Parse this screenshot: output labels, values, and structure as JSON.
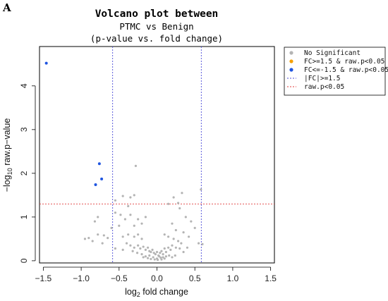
{
  "panel_letter": "A",
  "chart_data": {
    "type": "scatter",
    "title": "Volcano plot between",
    "subtitle": "PTMC vs Benign",
    "subtitle2": "(p-value vs. fold change)",
    "xlabel": {
      "prefix": "log",
      "sub": "2",
      "rest": " fold change"
    },
    "ylabel": {
      "prefix": "−log",
      "sub": "10",
      "rest": " raw.p−value"
    },
    "xlim": [
      -1.55,
      1.55
    ],
    "ylim": [
      -0.05,
      4.9
    ],
    "xticks": [
      -1.5,
      -1.0,
      -0.5,
      0.0,
      0.5,
      1.0,
      1.5
    ],
    "xtick_labels": [
      "−1.5",
      "−1.0",
      "−0.5",
      "0.0",
      "0.5",
      "1.0",
      "1.5"
    ],
    "yticks": [
      0,
      1,
      2,
      3,
      4
    ],
    "ytick_labels": [
      "0",
      "1",
      "2",
      "3",
      "4"
    ],
    "thresholds": {
      "fc_log2": [
        -0.585,
        0.585
      ],
      "p_log10": 1.3
    },
    "colors": {
      "ns": "#b4b4b4",
      "up": "#f5a000",
      "down": "#1f55e0",
      "fc_line": "#4a4ad8",
      "p_line": "#e03a3a"
    },
    "legend": [
      {
        "label": "No Significant",
        "kind": "dot",
        "color": "#b4b4b4"
      },
      {
        "label": "FC>=1.5 & raw.p<0.05",
        "kind": "dot",
        "color": "#f5a000"
      },
      {
        "label": "FC<=-1.5 & raw.p<0.05",
        "kind": "dot",
        "color": "#1f55e0"
      },
      {
        "label": "|FC|>=1.5",
        "kind": "line",
        "color": "#4a4ad8"
      },
      {
        "label": "raw.p<0.05",
        "kind": "line",
        "color": "#e03a3a"
      }
    ],
    "legend_position": "top-right outside",
    "series": [
      {
        "name": "No Significant",
        "points": [
          [
            -0.28,
            2.17
          ],
          [
            0.33,
            1.55
          ],
          [
            0.58,
            1.63
          ],
          [
            -0.45,
            1.48
          ],
          [
            -0.35,
            1.45
          ],
          [
            -0.3,
            1.5
          ],
          [
            0.22,
            1.45
          ],
          [
            -0.55,
            1.38
          ],
          [
            0.28,
            1.32
          ],
          [
            0.15,
            1.3
          ],
          [
            -0.38,
            1.25
          ],
          [
            -0.78,
            1.0
          ],
          [
            -0.82,
            0.9
          ],
          [
            -0.55,
            1.1
          ],
          [
            -0.48,
            1.05
          ],
          [
            -0.42,
            0.95
          ],
          [
            -0.35,
            1.05
          ],
          [
            -0.25,
            0.95
          ],
          [
            -0.15,
            1.0
          ],
          [
            0.3,
            1.2
          ],
          [
            0.38,
            1.0
          ],
          [
            0.45,
            0.9
          ],
          [
            0.5,
            0.75
          ],
          [
            -0.6,
            0.75
          ],
          [
            -0.5,
            0.8
          ],
          [
            -0.3,
            0.8
          ],
          [
            -0.2,
            0.85
          ],
          [
            0.2,
            0.85
          ],
          [
            0.25,
            0.7
          ],
          [
            0.35,
            0.65
          ],
          [
            -0.95,
            0.5
          ],
          [
            -0.9,
            0.52
          ],
          [
            -0.85,
            0.45
          ],
          [
            -0.78,
            0.6
          ],
          [
            -0.7,
            0.58
          ],
          [
            -0.65,
            0.52
          ],
          [
            -0.72,
            0.4
          ],
          [
            0.55,
            0.4
          ],
          [
            0.6,
            0.38
          ],
          [
            0.42,
            0.55
          ],
          [
            -0.45,
            0.55
          ],
          [
            -0.38,
            0.6
          ],
          [
            -0.3,
            0.55
          ],
          [
            -0.25,
            0.6
          ],
          [
            -0.2,
            0.5
          ],
          [
            0.1,
            0.6
          ],
          [
            0.15,
            0.55
          ],
          [
            0.22,
            0.5
          ],
          [
            0.28,
            0.45
          ],
          [
            0.32,
            0.4
          ],
          [
            -0.4,
            0.4
          ],
          [
            -0.35,
            0.35
          ],
          [
            -0.3,
            0.3
          ],
          [
            -0.25,
            0.35
          ],
          [
            -0.22,
            0.28
          ],
          [
            -0.18,
            0.32
          ],
          [
            -0.15,
            0.25
          ],
          [
            -0.12,
            0.3
          ],
          [
            -0.1,
            0.22
          ],
          [
            -0.08,
            0.2
          ],
          [
            -0.06,
            0.25
          ],
          [
            -0.04,
            0.18
          ],
          [
            -0.02,
            0.15
          ],
          [
            0.0,
            0.2
          ],
          [
            0.02,
            0.12
          ],
          [
            0.04,
            0.18
          ],
          [
            0.06,
            0.22
          ],
          [
            0.08,
            0.15
          ],
          [
            0.1,
            0.28
          ],
          [
            0.12,
            0.2
          ],
          [
            0.15,
            0.3
          ],
          [
            0.18,
            0.25
          ],
          [
            0.2,
            0.35
          ],
          [
            0.25,
            0.3
          ],
          [
            0.3,
            0.28
          ],
          [
            -0.2,
            0.15
          ],
          [
            -0.15,
            0.1
          ],
          [
            -0.1,
            0.12
          ],
          [
            -0.05,
            0.08
          ],
          [
            0.0,
            0.05
          ],
          [
            0.03,
            0.1
          ],
          [
            0.05,
            0.07
          ],
          [
            0.08,
            0.08
          ],
          [
            0.12,
            0.1
          ],
          [
            0.16,
            0.12
          ],
          [
            -0.08,
            0.04
          ],
          [
            -0.03,
            0.03
          ],
          [
            0.01,
            0.02
          ],
          [
            0.06,
            0.03
          ],
          [
            0.1,
            0.05
          ],
          [
            -0.12,
            0.06
          ],
          [
            -0.18,
            0.08
          ],
          [
            0.2,
            0.08
          ],
          [
            0.24,
            0.12
          ],
          [
            -0.26,
            0.18
          ],
          [
            -0.32,
            0.22
          ],
          [
            0.35,
            0.2
          ],
          [
            -0.45,
            0.25
          ],
          [
            0.4,
            0.3
          ],
          [
            -0.55,
            0.28
          ]
        ]
      },
      {
        "name": "FC<=-1.5 & raw.p<0.05",
        "points": [
          [
            -1.46,
            4.52
          ],
          [
            -0.76,
            2.22
          ],
          [
            -0.73,
            1.87
          ],
          [
            -0.81,
            1.74
          ]
        ]
      }
    ]
  }
}
